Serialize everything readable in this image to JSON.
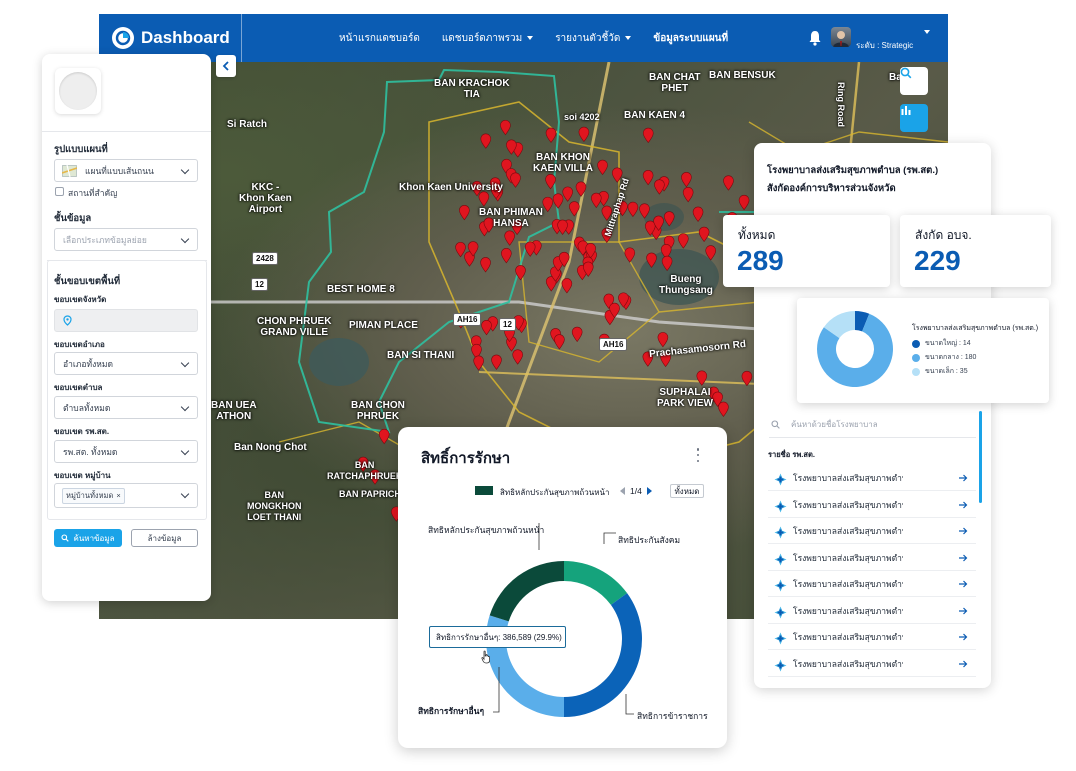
{
  "header": {
    "brand": "Dashboard",
    "nav": [
      {
        "label": "หน้าแรกแดชบอร์ด",
        "dropdown": false
      },
      {
        "label": "แดชบอร์ดภาพรวม",
        "dropdown": true
      },
      {
        "label": "รายงานตัวชี้วัด",
        "dropdown": true
      },
      {
        "label": "ข้อมูลระบบแผนที่",
        "dropdown": false,
        "active": true
      }
    ],
    "role": "ระดับ : Strategic",
    "icons": [
      "bell-icon",
      "user-avatar",
      "chevron-down-icon"
    ]
  },
  "map": {
    "labels": {
      "ban_krachok": "BAN KRACHOK\nTIA",
      "ban_chat_phet": "BAN CHAT\nPHET",
      "ban_bensuk": "BAN BENSUK",
      "ban_kaen4": "BAN KAEN 4",
      "soi": "soi 4202",
      "si_ratch": "Si Ratch",
      "ring_road": "Ring Road",
      "ban_khon_kaen_villa": "BAN KHON\nKAEN VILLA",
      "khon_kaen_university": "Khon Kaen University",
      "airport": "KKC -\nKhon Kaen\nAirport",
      "ban_phiman_hansa": "BAN PHIMAN\nHANSA",
      "bueng": "Bueng\nThungsang",
      "best_home": "BEST HOME 8",
      "chon_phruek": "CHON PHRUEK\nGRAND VILLE",
      "piman_place": "PIMAN PLACE",
      "ban_si_thani": "BAN SI THANI",
      "prachasamosorn": "Prachasamosorn Rd",
      "suphalai": "SUPHALAI\nPARK VIEW",
      "ban_uea_athon": "BAN UEA\nATHON",
      "ban_chon_phruek": "BAN CHON\nPHRUEK",
      "ban_nong_chot": "Ban Nong Chot",
      "ban_ratchaphruek": "BAN\nRATCHAPHRUEK",
      "ban_mongkhon": "BAN\nMONGKHON\nLOET THANI",
      "ban_paprichan": "BAN PAPRICHAN",
      "mittraphap": "Mittraphap Rd",
      "road_2428": "2428",
      "road_12a": "12",
      "road_12b": "12",
      "road_ah16a": "AH16",
      "road_ah16b": "AH16",
      "bang": "Bang Y"
    },
    "buttons": [
      "search-icon",
      "bar-chart-icon"
    ]
  },
  "left_panel": {
    "map_type_label": "รูปแบบแผนที่",
    "map_type_value": "แผนที่แบบเส้นถนน",
    "important_places": "สถานที่สำคัญ",
    "layer_label": "ชั้นข้อมูล",
    "layer_placeholder": "เลือกประเภทข้อมูลย่อย",
    "area_label": "ชั้นขอบเขตพื้นที่",
    "province_label": "ขอบเขตจังหวัด",
    "district_label": "ขอบเขตอำเภอ",
    "district_value": "อำเภอทั้งหมด",
    "subdistrict_label": "ขอบเขตตำบล",
    "subdistrict_value": "ตำบลทั้งหมด",
    "hospital_label": "ขอบเขต รพ.สต.",
    "hospital_value": "รพ.สต. ทั้งหมด",
    "village_label": "ขอบเขต หมู่บ้าน",
    "village_chip": "หมู่บ้านทั้งหมด",
    "search_button": "ค้นหาข้อมูล",
    "clear_button": "ล้างข้อมูล"
  },
  "right_panel": {
    "title_line1": "โรงพยาบาลส่งเสริมสุขภาพตำบล (รพ.สต.)",
    "title_line2": "สังกัดองค์การบริหารส่วนจังหวัด",
    "total_label": "ทั้งหมด",
    "total_value": "289",
    "under_label": "สังกัด อบจ.",
    "under_value": "229",
    "donut_title": "โรงพยาบาลส่งเสริมสุขภาพตำบล (รพ.สต.)",
    "donut_segments": [
      {
        "label": "ขนาดใหญ่ : 14",
        "value": 14,
        "color": "#0b5cb3"
      },
      {
        "label": "ขนาดกลาง : 180",
        "value": 180,
        "color": "#5aaeea"
      },
      {
        "label": "ขนาดเล็ก : 35",
        "value": 35,
        "color": "#b5e0f7"
      }
    ],
    "search_placeholder": "ค้นหาด้วยชื่อโรงพยาบาล",
    "list_heading": "รายชื่อ รพ.สต.",
    "list_items": [
      "โรงพยาบาลส่งเสริมสุขภาพตำบล",
      "โรงพยาบาลส่งเสริมสุขภาพตำบล",
      "โรงพยาบาลส่งเสริมสุขภาพตำบล",
      "โรงพยาบาลส่งเสริมสุขภาพตำบล",
      "โรงพยาบาลส่งเสริมสุขภาพตำบล",
      "โรงพยาบาลส่งเสริมสุขภาพตำบล",
      "โรงพยาบาลส่งเสริมสุขภาพตำบล",
      "โรงพยาบาลส่งเสริมสุขภาพตำบล"
    ]
  },
  "rights_card": {
    "title": "สิทธิ์การรักษา",
    "legend": "สิทธิหลักประกันสุขภาพถ้วนหน้า",
    "pager": "1/4",
    "all_button": "ทั้งหมด",
    "tooltip": "สิทธิการรักษาอื่นๆ: 386,589 (29.9%)",
    "segments": [
      {
        "label": "สิทธิประกันสังคม",
        "value": 15,
        "color": "#15a37c"
      },
      {
        "label": "สิทธิการข้าราชการ",
        "value": 35,
        "color": "#0b63b8"
      },
      {
        "label": "สิทธิการรักษาอื่นๆ",
        "value": 29.9,
        "color": "#5aaeea"
      },
      {
        "label": "สิทธิหลักประกันสุขภาพถ้วนหน้า",
        "value": 20.1,
        "color": "#0b4a3a"
      }
    ]
  }
}
